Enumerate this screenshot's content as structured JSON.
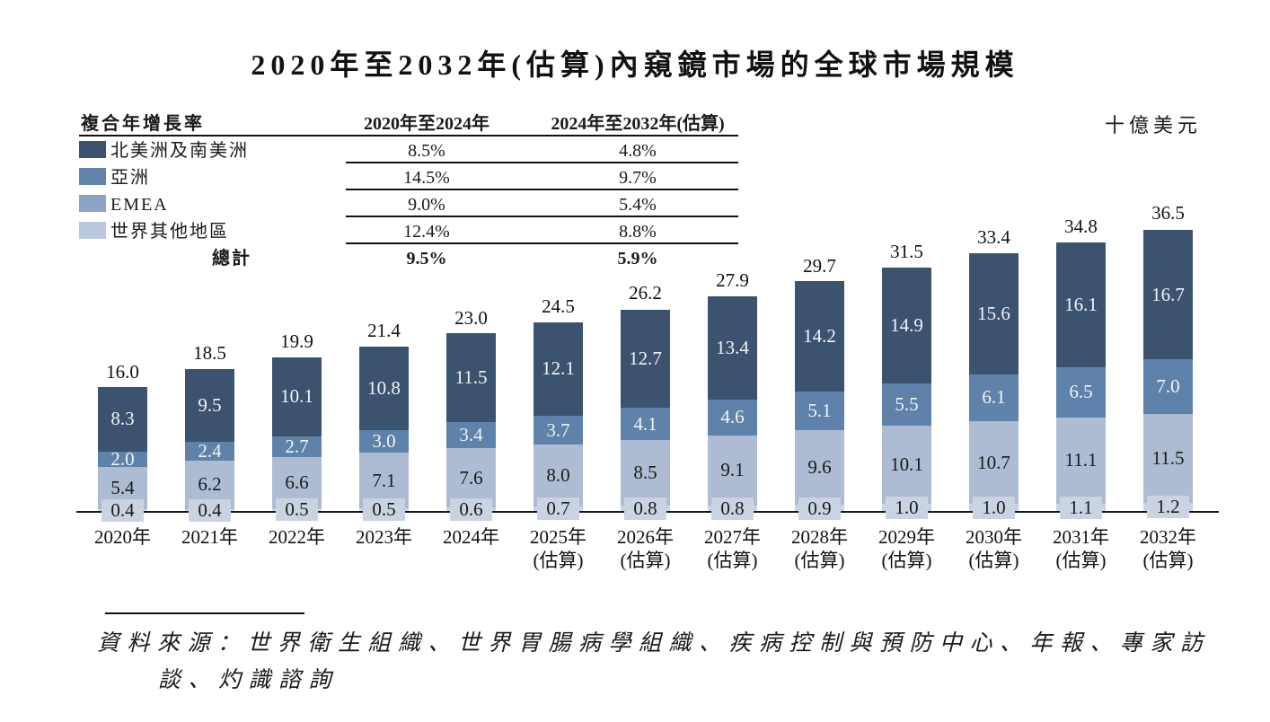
{
  "page_title": "2020年至2032年(估算)內窺鏡市場的全球市場規模",
  "unit_label": "十億美元",
  "cagr_table": {
    "title": "複合年增長率",
    "col1_header": "2020年至2024年",
    "col2_header": "2024年至2032年(估算)",
    "rows": [
      {
        "key": "americas",
        "region": "北美洲及南美洲",
        "swatch_color": "#3c536f",
        "cagr_2020_2024": "8.5%",
        "cagr_2024_2032": "4.8%"
      },
      {
        "key": "asia",
        "region": "亞洲",
        "swatch_color": "#6183aa",
        "cagr_2020_2024": "14.5%",
        "cagr_2024_2032": "9.7%"
      },
      {
        "key": "emea",
        "region": "EMEA",
        "swatch_color": "#8da3c4",
        "cagr_2020_2024": "9.0%",
        "cagr_2024_2032": "5.4%"
      },
      {
        "key": "row",
        "region": "世界其他地區",
        "swatch_color": "#bac7dc",
        "cagr_2020_2024": "12.4%",
        "cagr_2024_2032": "8.8%"
      }
    ],
    "total_row": {
      "label": "總計",
      "cagr_2020_2024": "9.5%",
      "cagr_2024_2032": "5.9%"
    }
  },
  "chart_data": {
    "type": "bar",
    "stacked": true,
    "title": "2020年至2032年(估算)內窺鏡市場的全球市場規模",
    "unit": "十億美元",
    "legend_position": "top-left",
    "grid": false,
    "ylim": [
      0,
      38
    ],
    "categories": [
      {
        "label": "2020年",
        "sub": ""
      },
      {
        "label": "2021年",
        "sub": ""
      },
      {
        "label": "2022年",
        "sub": ""
      },
      {
        "label": "2023年",
        "sub": ""
      },
      {
        "label": "2024年",
        "sub": ""
      },
      {
        "label": "2025年",
        "sub": "(估算)"
      },
      {
        "label": "2026年",
        "sub": "(估算)"
      },
      {
        "label": "2027年",
        "sub": "(估算)"
      },
      {
        "label": "2028年",
        "sub": "(估算)"
      },
      {
        "label": "2029年",
        "sub": "(估算)"
      },
      {
        "label": "2030年",
        "sub": "(估算)"
      },
      {
        "label": "2031年",
        "sub": "(估算)"
      },
      {
        "label": "2032年",
        "sub": "(估算)"
      }
    ],
    "series": [
      {
        "key": "row",
        "name": "世界其他地區",
        "color": "#c9d3e2",
        "label_text_color": "#1a1a1a",
        "values": [
          0.4,
          0.4,
          0.5,
          0.5,
          0.6,
          0.7,
          0.8,
          0.8,
          0.9,
          1.0,
          1.0,
          1.1,
          1.2
        ]
      },
      {
        "key": "emea",
        "name": "EMEA",
        "color": "#adbcd3",
        "label_text_color": "#1a1a1a",
        "values": [
          5.4,
          6.2,
          6.6,
          7.1,
          7.6,
          8.0,
          8.5,
          9.1,
          9.6,
          10.1,
          10.7,
          11.1,
          11.5
        ]
      },
      {
        "key": "asia",
        "name": "亞洲",
        "color": "#5e82a9",
        "label_text_color": "#f2f4f7",
        "values": [
          2.0,
          2.4,
          2.7,
          3.0,
          3.4,
          3.7,
          4.1,
          4.6,
          5.1,
          5.5,
          6.1,
          6.5,
          7.0
        ]
      },
      {
        "key": "americas",
        "name": "北美洲及南美洲",
        "color": "#3b536f",
        "label_text_color": "#f2f4f7",
        "values": [
          8.3,
          9.5,
          10.1,
          10.8,
          11.5,
          12.1,
          12.7,
          13.4,
          14.2,
          14.9,
          15.6,
          16.1,
          16.7
        ]
      }
    ],
    "totals": [
      16.0,
      18.5,
      19.9,
      21.4,
      23.0,
      24.5,
      26.2,
      27.9,
      29.7,
      31.5,
      33.4,
      34.8,
      36.5
    ]
  },
  "source_note": {
    "lines": [
      "資料來源：世界衛生組織、世界胃腸病學組織、疾病控制與預防中心、年報、專家訪",
      "談、灼識諮詢"
    ]
  }
}
